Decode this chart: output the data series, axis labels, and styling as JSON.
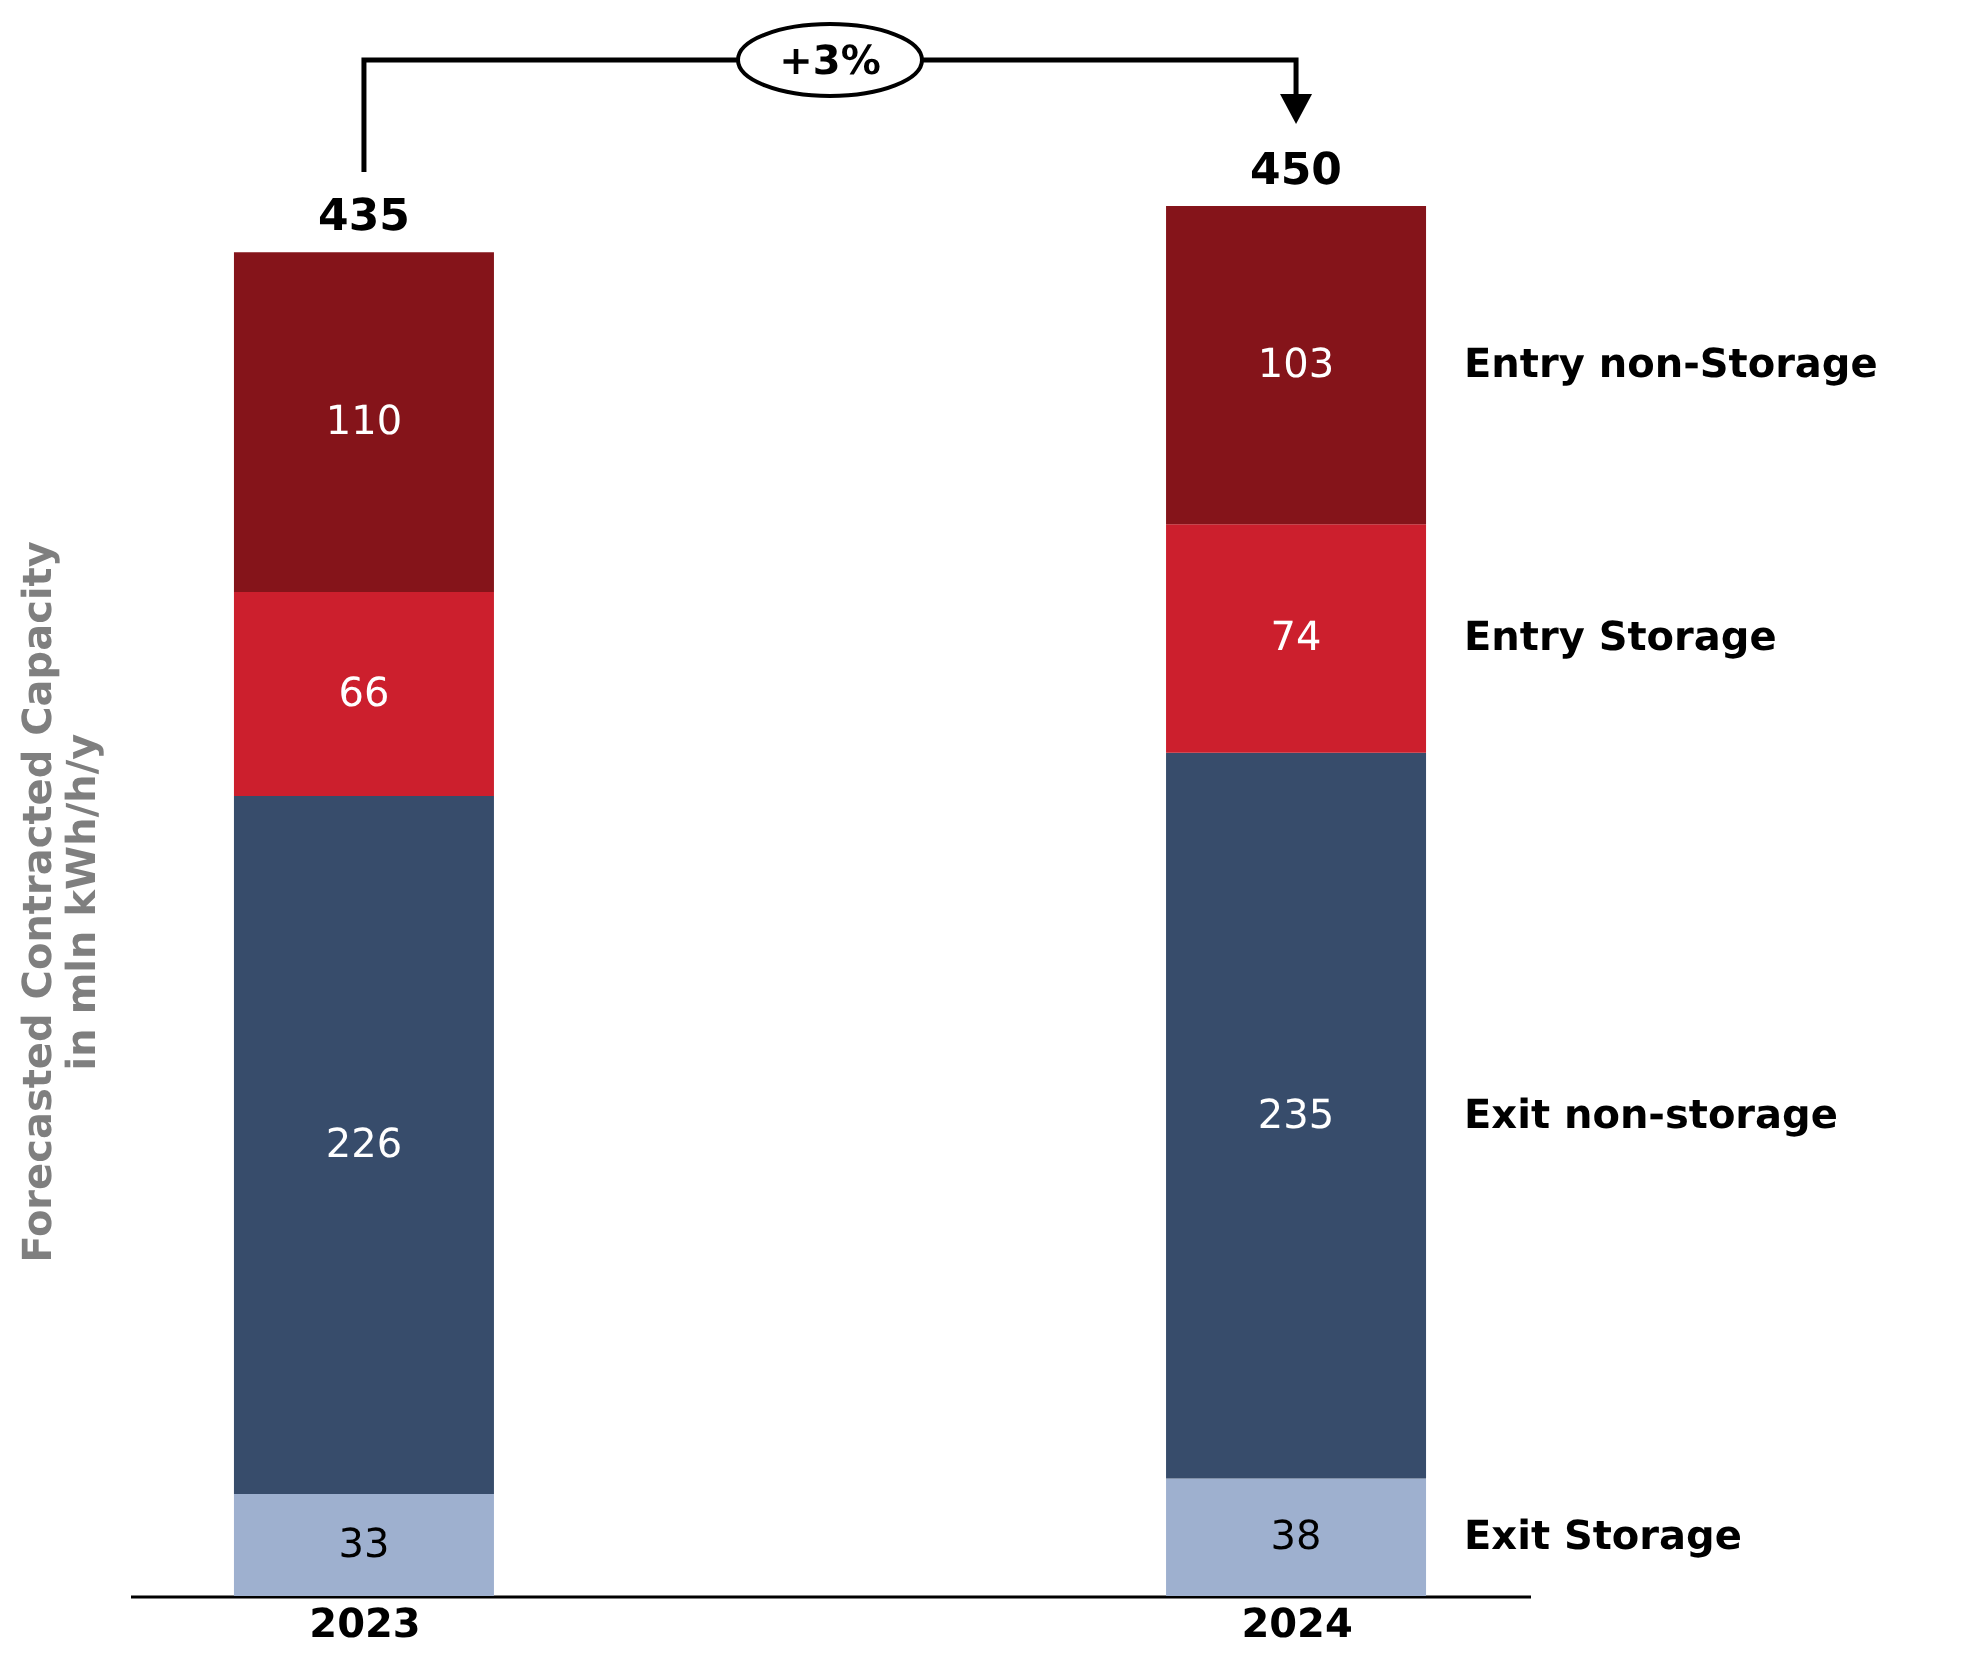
{
  "chart_data": {
    "type": "bar",
    "stacked": true,
    "data_labels": true,
    "ylabel": "Forecasted Contracted Capacity\nin mln kWh/h/y",
    "categories": [
      "2023",
      "2024"
    ],
    "series": [
      {
        "name": "Exit Storage",
        "color": "#9eb0cf",
        "values": [
          33,
          38
        ]
      },
      {
        "name": "Exit non-storage",
        "color": "#374c6b",
        "values": [
          226,
          235
        ]
      },
      {
        "name": "Entry Storage",
        "color": "#cc1f2d",
        "values": [
          66,
          74
        ]
      },
      {
        "name": "Entry non-Storage",
        "color": "#85141a",
        "values": [
          110,
          103
        ]
      }
    ],
    "totals": [
      "435",
      "450"
    ],
    "annotations": [
      "+3%"
    ]
  }
}
